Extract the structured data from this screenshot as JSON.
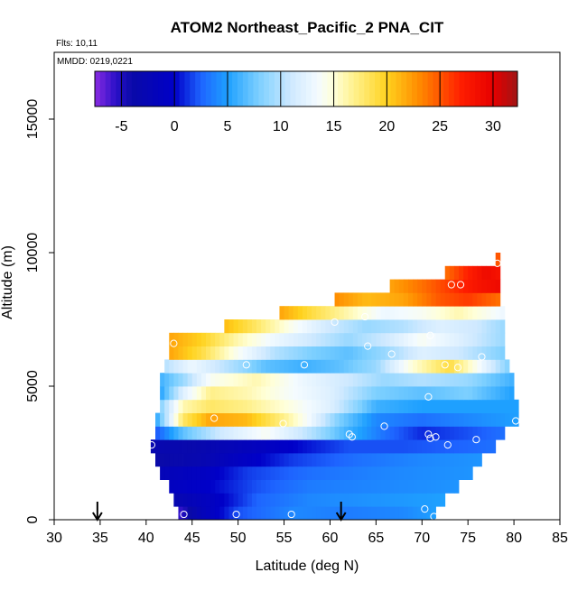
{
  "chart_data": {
    "type": "heatmap",
    "title": "ATOM2 Northeast_Pacific_2 PNA_CIT",
    "flights_note": "Flts: 10,11",
    "date_note": "MMDD: 0219,0221",
    "xlabel": "Latitude (deg N)",
    "ylabel": "Altitude (m)",
    "xlim": [
      30,
      85
    ],
    "ylim": [
      0,
      17500
    ],
    "x_ticks": [
      "30",
      "35",
      "40",
      "45",
      "50",
      "55",
      "60",
      "65",
      "70",
      "75",
      "80",
      "85"
    ],
    "x_tick_values": [
      30,
      35,
      40,
      45,
      50,
      55,
      60,
      65,
      70,
      75,
      80,
      85
    ],
    "y_ticks": [
      "0",
      "5000",
      "10000",
      "15000"
    ],
    "y_tick_values": [
      0,
      5000,
      10000,
      15000
    ],
    "colorbar": {
      "min": -7.5,
      "max": 32.3,
      "ticks": [
        "-5",
        "0",
        "5",
        "10",
        "15",
        "20",
        "25",
        "30"
      ],
      "tick_values": [
        -5,
        0,
        5,
        10,
        15,
        20,
        25,
        30
      ],
      "stops": [
        {
          "v": -7.5,
          "c": "#8a2be2"
        },
        {
          "v": -5.5,
          "c": "#2a10c8"
        },
        {
          "v": -4.0,
          "c": "#0a0aa8"
        },
        {
          "v": 0.0,
          "c": "#0000c8"
        },
        {
          "v": 2.5,
          "c": "#1e64ff"
        },
        {
          "v": 5.0,
          "c": "#1ea0ff"
        },
        {
          "v": 8.0,
          "c": "#7ed0ff"
        },
        {
          "v": 11.0,
          "c": "#cfe9ff"
        },
        {
          "v": 13.5,
          "c": "#f4fbff"
        },
        {
          "v": 15.0,
          "c": "#ffffd8"
        },
        {
          "v": 17.0,
          "c": "#fff08a"
        },
        {
          "v": 20.0,
          "c": "#ffd21e"
        },
        {
          "v": 23.0,
          "c": "#ff8c00"
        },
        {
          "v": 27.0,
          "c": "#ff1e00"
        },
        {
          "v": 30.0,
          "c": "#e60000"
        },
        {
          "v": 32.3,
          "c": "#a01414"
        }
      ]
    },
    "flight_arrows_lat": [
      34.7,
      61.2
    ],
    "bands": [
      {
        "alt": [
          0,
          500
        ],
        "lat": [
          43.5,
          71.5
        ],
        "knots": [
          [
            43.5,
            -6
          ],
          [
            46,
            -2
          ],
          [
            50,
            2
          ],
          [
            56,
            4
          ],
          [
            62,
            3.5
          ],
          [
            68,
            4
          ],
          [
            71.5,
            5
          ]
        ]
      },
      {
        "alt": [
          500,
          1000
        ],
        "lat": [
          43.0,
          72.5
        ],
        "knots": [
          [
            43,
            -3
          ],
          [
            47,
            -1
          ],
          [
            52,
            2.5
          ],
          [
            58,
            4
          ],
          [
            65,
            4.5
          ],
          [
            72.5,
            5
          ]
        ]
      },
      {
        "alt": [
          1000,
          1500
        ],
        "lat": [
          42.5,
          74.0
        ],
        "knots": [
          [
            42.5,
            -1
          ],
          [
            47,
            0
          ],
          [
            52,
            2
          ],
          [
            58,
            3.5
          ],
          [
            66,
            4
          ],
          [
            74,
            4.5
          ]
        ]
      },
      {
        "alt": [
          1500,
          2000
        ],
        "lat": [
          41.5,
          75.5
        ],
        "knots": [
          [
            41.5,
            -2
          ],
          [
            46,
            -1
          ],
          [
            51,
            1.5
          ],
          [
            58,
            3
          ],
          [
            67,
            4
          ],
          [
            75.5,
            4.5
          ]
        ]
      },
      {
        "alt": [
          2000,
          2500
        ],
        "lat": [
          41.0,
          76.5
        ],
        "knots": [
          [
            41,
            -4
          ],
          [
            46,
            -3
          ],
          [
            50,
            -1
          ],
          [
            56,
            1.5
          ],
          [
            63,
            3
          ],
          [
            70,
            4
          ],
          [
            76.5,
            4.5
          ]
        ]
      },
      {
        "alt": [
          2500,
          3000
        ],
        "lat": [
          40.5,
          78.0
        ],
        "knots": [
          [
            40.5,
            -3
          ],
          [
            45,
            -3.5
          ],
          [
            50,
            -2
          ],
          [
            56,
            0
          ],
          [
            62,
            2
          ],
          [
            68,
            2
          ],
          [
            74,
            2.5
          ],
          [
            78,
            3
          ]
        ]
      },
      {
        "alt": [
          3000,
          3500
        ],
        "lat": [
          41.0,
          79.0
        ],
        "knots": [
          [
            41,
            2
          ],
          [
            44,
            7
          ],
          [
            48,
            11
          ],
          [
            53,
            14
          ],
          [
            58,
            10
          ],
          [
            62,
            6
          ],
          [
            66,
            3
          ],
          [
            70,
            1
          ],
          [
            75,
            2
          ],
          [
            79,
            3
          ]
        ]
      },
      {
        "alt": [
          3500,
          4000
        ],
        "lat": [
          41.0,
          80.5
        ],
        "knots": [
          [
            41,
            5
          ],
          [
            44,
            18
          ],
          [
            47,
            22
          ],
          [
            51,
            21
          ],
          [
            55,
            17
          ],
          [
            58,
            13
          ],
          [
            61,
            8
          ],
          [
            65,
            4
          ],
          [
            70,
            3
          ],
          [
            75,
            4
          ],
          [
            80.5,
            5
          ]
        ]
      },
      {
        "alt": [
          4000,
          4500
        ],
        "lat": [
          41.5,
          80.5
        ],
        "knots": [
          [
            41.5,
            8
          ],
          [
            44,
            16
          ],
          [
            47,
            18
          ],
          [
            51,
            17
          ],
          [
            55,
            15
          ],
          [
            60,
            12
          ],
          [
            65,
            6
          ],
          [
            70,
            5
          ],
          [
            75,
            5
          ],
          [
            80.5,
            5
          ]
        ]
      },
      {
        "alt": [
          4500,
          5000
        ],
        "lat": [
          41.5,
          80.0
        ],
        "knots": [
          [
            41.5,
            5
          ],
          [
            44,
            12
          ],
          [
            47,
            17
          ],
          [
            51,
            16
          ],
          [
            55,
            14
          ],
          [
            60,
            12
          ],
          [
            65,
            8
          ],
          [
            70,
            7
          ],
          [
            75,
            8
          ],
          [
            80,
            5
          ]
        ]
      },
      {
        "alt": [
          5000,
          5500
        ],
        "lat": [
          41.5,
          80.0
        ],
        "knots": [
          [
            41.5,
            6
          ],
          [
            44,
            9
          ],
          [
            47,
            14
          ],
          [
            52,
            16
          ],
          [
            57,
            13
          ],
          [
            62,
            11
          ],
          [
            66,
            9
          ],
          [
            70,
            10
          ],
          [
            75,
            9
          ],
          [
            80,
            6
          ]
        ]
      },
      {
        "alt": [
          5500,
          6000
        ],
        "lat": [
          42.0,
          79.5
        ],
        "knots": [
          [
            42,
            10
          ],
          [
            45,
            13
          ],
          [
            49,
            10
          ],
          [
            53,
            7
          ],
          [
            57,
            6
          ],
          [
            61,
            7
          ],
          [
            65,
            9
          ],
          [
            69,
            15
          ],
          [
            73,
            19
          ],
          [
            76,
            14
          ],
          [
            79.5,
            8
          ]
        ]
      },
      {
        "alt": [
          6000,
          6500
        ],
        "lat": [
          42.5,
          79.0
        ],
        "knots": [
          [
            42.5,
            22
          ],
          [
            46,
            19
          ],
          [
            50,
            14
          ],
          [
            54,
            10
          ],
          [
            58,
            8
          ],
          [
            62,
            7
          ],
          [
            66,
            9
          ],
          [
            70,
            12
          ],
          [
            74,
            11
          ],
          [
            79,
            8
          ]
        ]
      },
      {
        "alt": [
          6500,
          7000
        ],
        "lat": [
          42.5,
          79.0
        ],
        "knots": [
          [
            42.5,
            22
          ],
          [
            46,
            20
          ],
          [
            50,
            16
          ],
          [
            54,
            13
          ],
          [
            58,
            11
          ],
          [
            62,
            9
          ],
          [
            66,
            11
          ],
          [
            70,
            14
          ],
          [
            74,
            12
          ],
          [
            79,
            9
          ]
        ]
      },
      {
        "alt": [
          7000,
          7500
        ],
        "lat": [
          48.5,
          79.0
        ],
        "knots": [
          [
            48.5,
            21
          ],
          [
            52,
            18
          ],
          [
            56,
            14
          ],
          [
            60,
            11
          ],
          [
            64,
            9
          ],
          [
            68,
            10
          ],
          [
            72,
            12
          ],
          [
            76,
            11
          ],
          [
            79,
            9
          ]
        ]
      },
      {
        "alt": [
          7500,
          8000
        ],
        "lat": [
          54.5,
          79.0
        ],
        "knots": [
          [
            54.5,
            22
          ],
          [
            58,
            19
          ],
          [
            62,
            16
          ],
          [
            66,
            13
          ],
          [
            70,
            14
          ],
          [
            74,
            16
          ],
          [
            79,
            13
          ]
        ]
      },
      {
        "alt": [
          8000,
          8500
        ],
        "lat": [
          60.5,
          78.5
        ],
        "knots": [
          [
            60.5,
            23
          ],
          [
            64,
            21
          ],
          [
            68,
            22
          ],
          [
            72,
            25
          ],
          [
            75,
            26
          ],
          [
            78.5,
            24
          ]
        ]
      },
      {
        "alt": [
          8500,
          9000
        ],
        "lat": [
          66.5,
          78.5
        ],
        "knots": [
          [
            66.5,
            22
          ],
          [
            70,
            24
          ],
          [
            73,
            26
          ],
          [
            76,
            28
          ],
          [
            78.5,
            29
          ]
        ]
      },
      {
        "alt": [
          9000,
          9500
        ],
        "lat": [
          72.5,
          78.5
        ],
        "knots": [
          [
            72.5,
            24
          ],
          [
            75,
            27
          ],
          [
            77,
            29
          ],
          [
            78.5,
            28
          ]
        ]
      },
      {
        "alt": [
          9500,
          10000
        ],
        "lat": [
          78.0,
          78.5
        ],
        "knots": [
          [
            78,
            26
          ],
          [
            78.5,
            24
          ]
        ]
      }
    ],
    "sample_points": [
      [
        44.1,
        200
      ],
      [
        49.8,
        200
      ],
      [
        55.8,
        200
      ],
      [
        70.3,
        400
      ],
      [
        71.3,
        120
      ],
      [
        40.6,
        2800
      ],
      [
        47.4,
        3800
      ],
      [
        54.9,
        3600
      ],
      [
        62.1,
        3200
      ],
      [
        62.4,
        3100
      ],
      [
        65.9,
        3500
      ],
      [
        70.7,
        3200
      ],
      [
        70.9,
        3050
      ],
      [
        71.5,
        3100
      ],
      [
        72.8,
        2800
      ],
      [
        75.9,
        3000
      ],
      [
        80.2,
        3700
      ],
      [
        70.7,
        4600
      ],
      [
        43.0,
        6600
      ],
      [
        50.9,
        5800
      ],
      [
        57.2,
        5800
      ],
      [
        64.1,
        6500
      ],
      [
        66.7,
        6200
      ],
      [
        70.9,
        6900
      ],
      [
        72.5,
        5800
      ],
      [
        73.9,
        5700
      ],
      [
        76.5,
        6100
      ],
      [
        60.5,
        7400
      ],
      [
        63.8,
        7600
      ],
      [
        73.2,
        8800
      ],
      [
        74.2,
        8800
      ],
      [
        78.2,
        9600
      ]
    ]
  }
}
